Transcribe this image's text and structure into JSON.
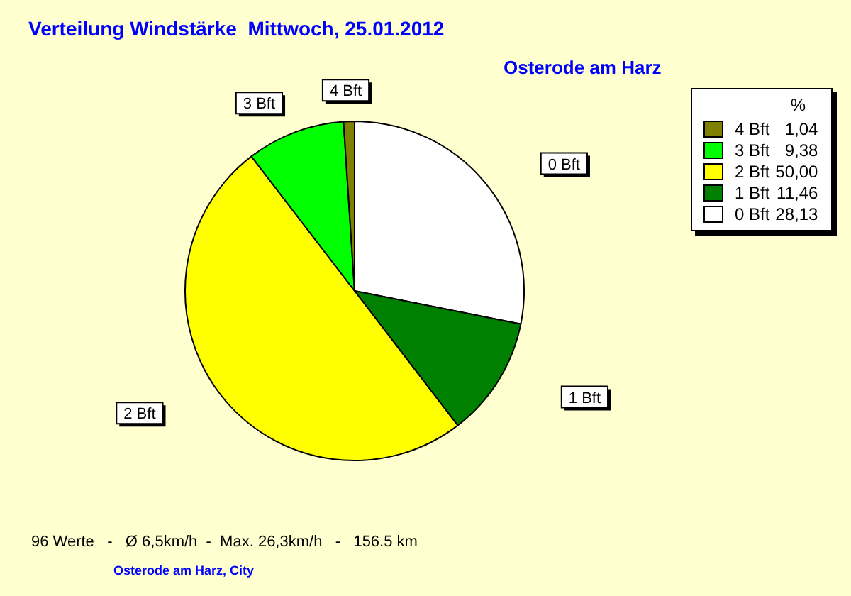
{
  "chart_data": {
    "type": "pie",
    "title": "Verteilung Windstärke  Mittwoch, 25.01.2012",
    "subtitle": "Osterode am Harz",
    "legend_title": "%",
    "legend": "top right",
    "categories": [
      "0 Bft",
      "1 Bft",
      "2 Bft",
      "3 Bft",
      "4 Bft"
    ],
    "values": [
      28.13,
      11.46,
      50.0,
      9.38,
      1.04
    ],
    "value_labels": [
      "28,13",
      "11,46",
      "50,00",
      "9,38",
      "1,04"
    ],
    "colors": [
      "#ffffff",
      "#008000",
      "#ffff00",
      "#00ff00",
      "#808000"
    ],
    "annotations": [
      "96 Werte   -   Ø 6,5km/h  -  Max. 26,3km/h   -   156.5 km",
      "Osterode am Harz, City"
    ]
  }
}
